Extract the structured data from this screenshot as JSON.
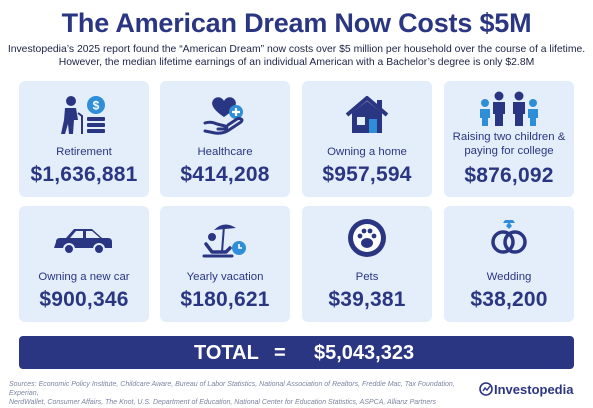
{
  "header": {
    "title": "The American Dream Now Costs $5M",
    "subtitle_line1": "Investopedia’s 2025 report found the “American Dream” now costs over $5 million per household over the course of a lifetime.",
    "subtitle_line2": "However, the median lifetime earnings of an individual American with a Bachelor’s degree is only $2.8M"
  },
  "cards": [
    {
      "label": "Retirement",
      "value": "$1,636,881",
      "icon": "retirement-icon"
    },
    {
      "label": "Healthcare",
      "value": "$414,208",
      "icon": "healthcare-icon"
    },
    {
      "label": "Owning a home",
      "value": "$957,594",
      "icon": "house-icon"
    },
    {
      "label_line1": "Raising two children &",
      "label_line2": "paying for college",
      "value": "$876,092",
      "icon": "family-icon"
    },
    {
      "label": "Owning a new car",
      "value": "$900,346",
      "icon": "car-icon"
    },
    {
      "label": "Yearly vacation",
      "value": "$180,621",
      "icon": "vacation-icon"
    },
    {
      "label": "Pets",
      "value": "$39,381",
      "icon": "paw-icon"
    },
    {
      "label": "Wedding",
      "value": "$38,200",
      "icon": "rings-icon"
    }
  ],
  "total": {
    "label": "TOTAL",
    "equals": "=",
    "value": "$5,043,323"
  },
  "footer": {
    "sources_line1": "Sources: Economic Policy Institute, Childcare Aware, Bureau of Labor Statistics, National Association of Realtors, Freddie Mac, Tax Foundation, Experian,",
    "sources_line2": "NerdWallet, Consumer Affairs, The Knot, U.S. Department of Education, National Center for Education Statistics, ASPCA, Allianz Partners",
    "brand": "Investopedia"
  },
  "colors": {
    "navy": "#2b3683",
    "card_bg": "#e4eefa",
    "accent_blue": "#2e8fd8"
  }
}
